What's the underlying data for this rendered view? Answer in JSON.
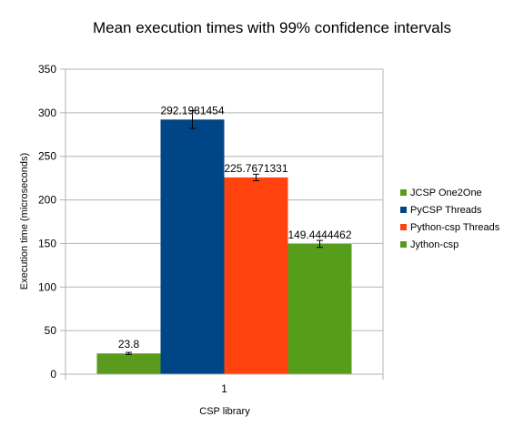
{
  "chart_data": {
    "type": "bar",
    "title": "Mean execution times with 99% confidence intervals",
    "xlabel": "CSP library",
    "ylabel": "Execution time (microseconds)",
    "categories": [
      "1"
    ],
    "ylim": [
      0,
      350
    ],
    "yticks": [
      0,
      50,
      100,
      150,
      200,
      250,
      300,
      350
    ],
    "grid": true,
    "legend_position": "right",
    "series": [
      {
        "name": "JCSP One2One",
        "value": 23.8,
        "label": "23.8",
        "error": [
          22.6,
          25.0
        ],
        "color": "#5a9a1c"
      },
      {
        "name": "PyCSP Threads",
        "value": 292.1981454,
        "label": "292.1981454",
        "error": [
          282.0,
          302.5
        ],
        "color": "#004586"
      },
      {
        "name": "Python-csp Threads",
        "value": 225.7671331,
        "label": "225.7671331",
        "error": [
          222.0,
          229.5
        ],
        "color": "#ff420e"
      },
      {
        "name": "Jython-csp",
        "value": 149.4444462,
        "label": "149.4444462",
        "error": [
          145.5,
          153.5
        ],
        "color": "#579d1c"
      }
    ]
  }
}
